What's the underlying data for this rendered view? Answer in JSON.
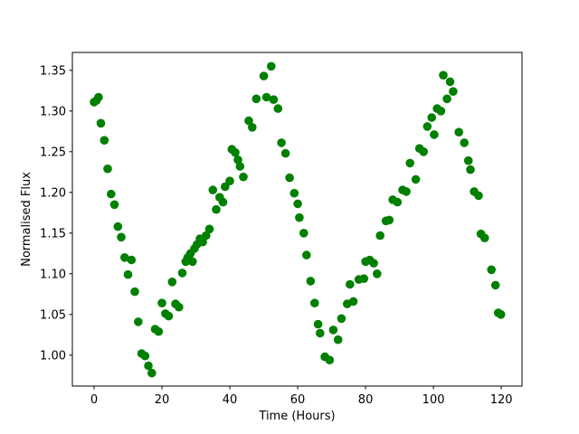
{
  "figure": {
    "background_color": "#ffffff",
    "frame_color": "#000000"
  },
  "chart_data": {
    "type": "scatter",
    "title": "",
    "xlabel": "Time (Hours)",
    "ylabel": "Normalised Flux",
    "legend": null,
    "grid": false,
    "marker": {
      "shape": "circle",
      "color": "#008000",
      "radius_px": 4.8
    },
    "xlim": [
      -6.4,
      126.1
    ],
    "ylim": [
      0.962,
      1.372
    ],
    "xticks": [
      0,
      20,
      40,
      60,
      80,
      100,
      120
    ],
    "xtick_labels": [
      "0",
      "20",
      "40",
      "60",
      "80",
      "100",
      "120"
    ],
    "yticks": [
      1.0,
      1.05,
      1.1,
      1.15,
      1.2,
      1.25,
      1.3,
      1.35
    ],
    "ytick_labels": [
      "1.00",
      "1.05",
      "1.10",
      "1.15",
      "1.20",
      "1.25",
      "1.30",
      "1.35"
    ],
    "points": [
      [
        0,
        1.311
      ],
      [
        0.7,
        1.313
      ],
      [
        1.3,
        1.317
      ],
      [
        2,
        1.285
      ],
      [
        3,
        1.264
      ],
      [
        4,
        1.229
      ],
      [
        5,
        1.198
      ],
      [
        6,
        1.185
      ],
      [
        7,
        1.158
      ],
      [
        8,
        1.145
      ],
      [
        9,
        1.12
      ],
      [
        10,
        1.099
      ],
      [
        11,
        1.117
      ],
      [
        12,
        1.078
      ],
      [
        13,
        1.041
      ],
      [
        14,
        1.002
      ],
      [
        15,
        0.999
      ],
      [
        16,
        0.987
      ],
      [
        17,
        0.978
      ],
      [
        18,
        1.032
      ],
      [
        19,
        1.029
      ],
      [
        20,
        1.064
      ],
      [
        21,
        1.051
      ],
      [
        22,
        1.048
      ],
      [
        23,
        1.09
      ],
      [
        24,
        1.063
      ],
      [
        25,
        1.059
      ],
      [
        26,
        1.101
      ],
      [
        27,
        1.115
      ],
      [
        27.6,
        1.12
      ],
      [
        28.4,
        1.125
      ],
      [
        29,
        1.115
      ],
      [
        29.6,
        1.131
      ],
      [
        30.3,
        1.136
      ],
      [
        31.2,
        1.143
      ],
      [
        32,
        1.139
      ],
      [
        33,
        1.147
      ],
      [
        34,
        1.155
      ],
      [
        35,
        1.203
      ],
      [
        36,
        1.179
      ],
      [
        37,
        1.194
      ],
      [
        38,
        1.188
      ],
      [
        38.6,
        1.207
      ],
      [
        40,
        1.214
      ],
      [
        40.6,
        1.253
      ],
      [
        41.6,
        1.249
      ],
      [
        42.4,
        1.24
      ],
      [
        43,
        1.232
      ],
      [
        44,
        1.219
      ],
      [
        45.6,
        1.288
      ],
      [
        46.6,
        1.28
      ],
      [
        47.8,
        1.315
      ],
      [
        50,
        1.343
      ],
      [
        50.8,
        1.317
      ],
      [
        52.2,
        1.355
      ],
      [
        52.9,
        1.314
      ],
      [
        54.2,
        1.303
      ],
      [
        55.2,
        1.261
      ],
      [
        56.4,
        1.248
      ],
      [
        57.6,
        1.218
      ],
      [
        59,
        1.199
      ],
      [
        60,
        1.186
      ],
      [
        60.5,
        1.169
      ],
      [
        61.8,
        1.15
      ],
      [
        62.6,
        1.123
      ],
      [
        63.8,
        1.091
      ],
      [
        65,
        1.064
      ],
      [
        66,
        1.038
      ],
      [
        66.6,
        1.027
      ],
      [
        68,
        0.998
      ],
      [
        69.4,
        0.994
      ],
      [
        70.5,
        1.031
      ],
      [
        71.9,
        1.019
      ],
      [
        72.9,
        1.045
      ],
      [
        74.6,
        1.063
      ],
      [
        75.4,
        1.087
      ],
      [
        76.4,
        1.066
      ],
      [
        78,
        1.093
      ],
      [
        79.5,
        1.094
      ],
      [
        80,
        1.115
      ],
      [
        81.2,
        1.117
      ],
      [
        82.4,
        1.113
      ],
      [
        83.4,
        1.1
      ],
      [
        84.3,
        1.147
      ],
      [
        86,
        1.165
      ],
      [
        87,
        1.166
      ],
      [
        88,
        1.191
      ],
      [
        89.4,
        1.188
      ],
      [
        90.9,
        1.203
      ],
      [
        92,
        1.201
      ],
      [
        93.1,
        1.236
      ],
      [
        94.8,
        1.216
      ],
      [
        95.9,
        1.254
      ],
      [
        97.1,
        1.25
      ],
      [
        98.2,
        1.281
      ],
      [
        99.5,
        1.292
      ],
      [
        100.2,
        1.271
      ],
      [
        101.1,
        1.303
      ],
      [
        102.2,
        1.3
      ],
      [
        102.9,
        1.344
      ],
      [
        104,
        1.315
      ],
      [
        104.9,
        1.336
      ],
      [
        105.8,
        1.324
      ],
      [
        107.5,
        1.274
      ],
      [
        109.1,
        1.261
      ],
      [
        110.3,
        1.239
      ],
      [
        110.9,
        1.228
      ],
      [
        112,
        1.201
      ],
      [
        113.3,
        1.196
      ],
      [
        114,
        1.149
      ],
      [
        115.1,
        1.144
      ],
      [
        117.1,
        1.105
      ],
      [
        118.3,
        1.086
      ],
      [
        119.1,
        1.052
      ],
      [
        119.9,
        1.05
      ]
    ]
  }
}
